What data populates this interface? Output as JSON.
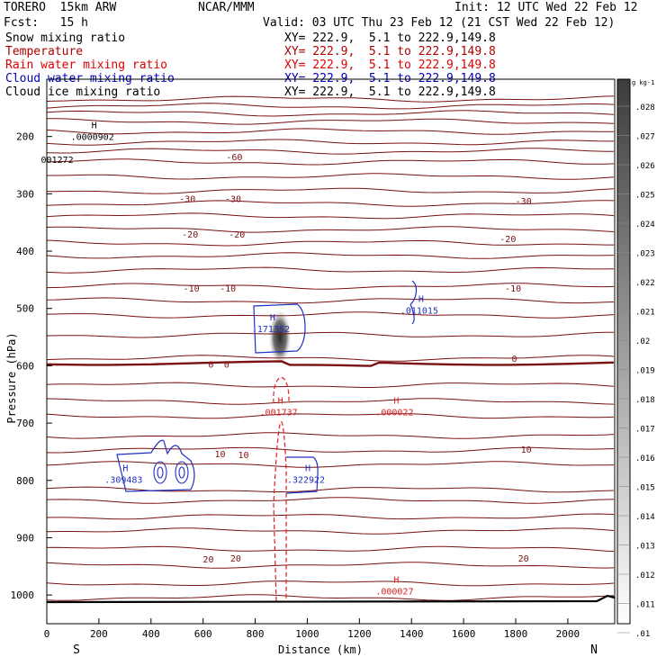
{
  "header": {
    "model": "TORERO  15km ARW",
    "center": "NCAR/MMM",
    "init": "Init: 12 UTC Wed 22 Feb 12",
    "fcst": "Fcst:   15 h",
    "valid": "Valid: 03 UTC Thu 23 Feb 12 (21 CST Wed 22 Feb 12)"
  },
  "fields": [
    {
      "name": "Snow mixing ratio",
      "xy": "XY= 222.9,  5.1 to 222.9,149.8",
      "color": "#000000"
    },
    {
      "name": "Temperature",
      "xy": "XY= 222.9,  5.1 to 222.9,149.8",
      "color": "#b00000"
    },
    {
      "name": "Rain water mixing ratio",
      "xy": "XY= 222.9,  5.1 to 222.9,149.8",
      "color": "#dd0000"
    },
    {
      "name": "Cloud water mixing ratio",
      "xy": "XY= 222.9,  5.1 to 222.9,149.8",
      "color": "#0000bb"
    },
    {
      "name": "Cloud ice mixing ratio",
      "xy": "XY= 222.9,  5.1 to 222.9,149.8",
      "color": "#000000"
    }
  ],
  "colors": {
    "temperature": "#7a1010",
    "zero_isotherm": "#7a1010",
    "rain": "#dd2020",
    "cloud_water": "#2030c0",
    "axis": "#000000"
  },
  "chart_data": {
    "type": "heatmap",
    "xlabel": "Distance (km)",
    "ylabel": "Pressure (hPa)",
    "xlim": [
      0,
      2180
    ],
    "ylim": [
      1050,
      100
    ],
    "x_ticks": [
      0,
      200,
      400,
      600,
      800,
      1000,
      1200,
      1400,
      1600,
      1800,
      2000
    ],
    "y_ticks": [
      200,
      300,
      400,
      500,
      600,
      700,
      800,
      900,
      1000
    ],
    "left_endpoint": "S",
    "right_endpoint": "N",
    "colorbar": {
      "unit": "g kg-1",
      "tick_labels": [
        ".028",
        ".027",
        ".026",
        ".025",
        ".024",
        ".023",
        ".022",
        ".021",
        ".02",
        ".019",
        ".018",
        ".017",
        ".016",
        ".015",
        ".014",
        ".013",
        ".012",
        ".011",
        ".01"
      ]
    },
    "isotherm_labels": [
      {
        "x": 720,
        "p": 235,
        "text": "-60"
      },
      {
        "x": 540,
        "p": 308,
        "text": "-30"
      },
      {
        "x": 715,
        "p": 308,
        "text": "-30"
      },
      {
        "x": 1830,
        "p": 312,
        "text": "-30"
      },
      {
        "x": 550,
        "p": 370,
        "text": "-20"
      },
      {
        "x": 730,
        "p": 370,
        "text": "-20"
      },
      {
        "x": 1770,
        "p": 378,
        "text": "-20"
      },
      {
        "x": 555,
        "p": 464,
        "text": "-10"
      },
      {
        "x": 695,
        "p": 464,
        "text": "-10"
      },
      {
        "x": 1790,
        "p": 464,
        "text": "-10"
      },
      {
        "x": 630,
        "p": 597,
        "text": "0"
      },
      {
        "x": 690,
        "p": 597,
        "text": "0"
      },
      {
        "x": 1795,
        "p": 587,
        "text": "0"
      },
      {
        "x": 665,
        "p": 753,
        "text": "10"
      },
      {
        "x": 755,
        "p": 755,
        "text": "10"
      },
      {
        "x": 1840,
        "p": 745,
        "text": "10"
      },
      {
        "x": 620,
        "p": 937,
        "text": "20"
      },
      {
        "x": 725,
        "p": 935,
        "text": "20"
      },
      {
        "x": 1830,
        "p": 935,
        "text": "20"
      }
    ],
    "extrema": [
      {
        "x": 175,
        "p": 192,
        "label": "H",
        "value": ".0000902",
        "color": "#000000"
      },
      {
        "x": 40,
        "p": 232,
        "label": "",
        "value": "001272",
        "color": "#000000"
      },
      {
        "x": 1430,
        "p": 495,
        "label": "H",
        "value": ".011015",
        "color": "#2030c0"
      },
      {
        "x": 860,
        "p": 527,
        "label": "H",
        "value": ".171352",
        "color": "#2030c0"
      },
      {
        "x": 890,
        "p": 672,
        "label": "H",
        "value": ".001737",
        "color": "#dd2020"
      },
      {
        "x": 1335,
        "p": 672,
        "label": "H",
        "value": ".000022",
        "color": "#dd2020"
      },
      {
        "x": 295,
        "p": 790,
        "label": "H",
        "value": ".309483",
        "color": "#2030c0"
      },
      {
        "x": 995,
        "p": 790,
        "label": "H",
        "value": ".322922",
        "color": "#2030c0"
      },
      {
        "x": 1335,
        "p": 985,
        "label": "H",
        "value": ".000027",
        "color": "#dd2020"
      }
    ],
    "snow_max": {
      "x": 895,
      "p": 550,
      "value": ".028"
    }
  }
}
